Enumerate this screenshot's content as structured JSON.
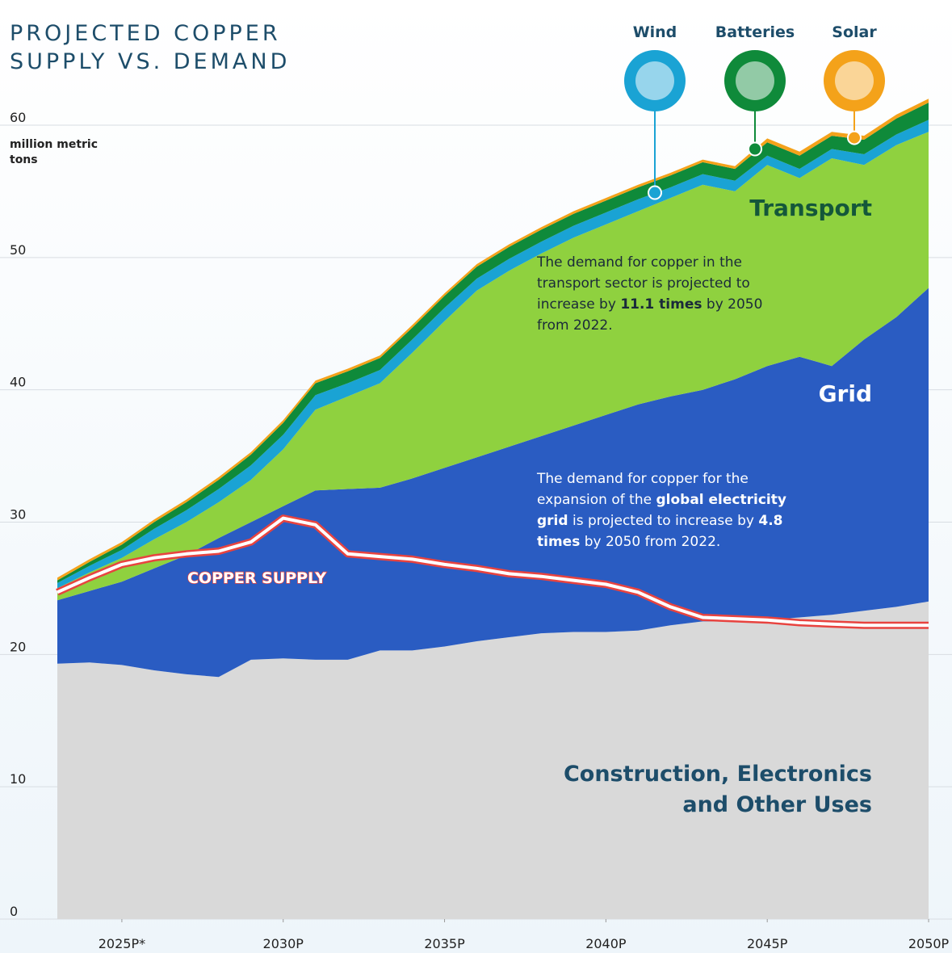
{
  "chart_data": {
    "type": "stacked-area",
    "title": "PROJECTED COPPER SUPPLY VS. DEMAND",
    "y_label": "million metric tons",
    "x": [
      2023,
      2024,
      2025,
      2026,
      2027,
      2028,
      2029,
      2030,
      2031,
      2032,
      2033,
      2034,
      2035,
      2036,
      2037,
      2038,
      2039,
      2040,
      2041,
      2042,
      2043,
      2044,
      2045,
      2046,
      2047,
      2048,
      2049,
      2050
    ],
    "xlim": [
      2022.6,
      2050.45
    ],
    "xticks": [
      {
        "value": 2025,
        "label": "2025P*"
      },
      {
        "value": 2030,
        "label": "2030P"
      },
      {
        "value": 2035,
        "label": "2035P"
      },
      {
        "value": 2040,
        "label": "2040P"
      },
      {
        "value": 2045,
        "label": "2045P"
      },
      {
        "value": 2050,
        "label": "2050P"
      }
    ],
    "ylim": [
      0,
      60
    ],
    "yticks": [
      0,
      10,
      20,
      30,
      40,
      50,
      60
    ],
    "grid": true,
    "series": [
      {
        "name": "Construction, Electronics and Other Uses",
        "color": "#d9d9d9",
        "values": [
          19.3,
          19.4,
          19.2,
          18.8,
          18.5,
          18.3,
          19.6,
          19.7,
          19.6,
          19.6,
          20.3,
          20.3,
          20.6,
          21.0,
          21.3,
          21.6,
          21.7,
          21.7,
          21.8,
          22.2,
          22.5,
          22.5,
          22.6,
          22.8,
          23.0,
          23.3,
          23.6,
          24.0
        ]
      },
      {
        "name": "Grid",
        "color": "#2a5cc2",
        "values": [
          4.8,
          5.4,
          6.3,
          7.7,
          9.0,
          10.5,
          10.4,
          11.5,
          12.8,
          12.9,
          12.3,
          13.0,
          13.5,
          13.9,
          14.4,
          14.9,
          15.6,
          16.4,
          17.1,
          17.3,
          17.5,
          18.3,
          19.2,
          19.7,
          18.8,
          20.5,
          21.9,
          23.7
        ]
      },
      {
        "name": "Transport",
        "color": "#8fd13f",
        "values": [
          0.9,
          1.4,
          1.8,
          2.2,
          2.5,
          2.7,
          3.2,
          4.3,
          6.1,
          7.0,
          7.9,
          9.5,
          11.1,
          12.6,
          13.3,
          13.8,
          14.2,
          14.4,
          14.6,
          15.0,
          15.5,
          14.2,
          15.2,
          13.5,
          15.7,
          13.2,
          13.0,
          11.8
        ]
      },
      {
        "name": "Wind",
        "color": "#1aa3d4",
        "values": [
          0.4,
          0.5,
          0.6,
          0.8,
          0.9,
          1.0,
          1.1,
          1.1,
          1.1,
          1.0,
          1.0,
          1.0,
          1.0,
          0.9,
          0.9,
          0.9,
          0.9,
          0.9,
          0.9,
          0.8,
          0.8,
          0.8,
          0.7,
          0.7,
          0.7,
          0.8,
          0.8,
          0.9
        ]
      },
      {
        "name": "Batteries",
        "color": "#0f8a3a",
        "values": [
          0.2,
          0.3,
          0.4,
          0.5,
          0.6,
          0.7,
          0.8,
          0.9,
          0.9,
          0.9,
          0.9,
          0.9,
          0.9,
          0.9,
          0.9,
          0.9,
          0.9,
          0.9,
          0.9,
          0.9,
          0.9,
          0.9,
          1.0,
          1.0,
          1.0,
          1.1,
          1.2,
          1.3
        ]
      },
      {
        "name": "Solar",
        "color": "#f4a21a",
        "values": [
          0.2,
          0.2,
          0.2,
          0.2,
          0.2,
          0.2,
          0.2,
          0.2,
          0.2,
          0.2,
          0.2,
          0.2,
          0.2,
          0.2,
          0.2,
          0.2,
          0.2,
          0.2,
          0.2,
          0.2,
          0.2,
          0.2,
          0.3,
          0.3,
          0.3,
          0.3,
          0.3,
          0.3
        ]
      }
    ],
    "supply": {
      "name": "COPPER SUPPLY",
      "color": "#e8433f",
      "values": [
        24.7,
        25.8,
        26.8,
        27.3,
        27.6,
        27.8,
        28.5,
        30.3,
        29.8,
        27.6,
        27.4,
        27.2,
        26.8,
        26.5,
        26.1,
        25.9,
        25.6,
        25.3,
        24.7,
        23.6,
        22.8,
        22.7,
        22.6,
        22.4,
        22.3,
        22.2,
        22.2,
        22.2
      ]
    },
    "annotations": [
      [
        "The demand for copper in the transport sector is projected to increase by ",
        "11.1 times",
        " by 2050 from 2022."
      ],
      [
        "The demand for copper for the expansion of the ",
        "global electricity grid",
        " is projected to increase by ",
        "4.8 times",
        " by 2050 from 2022."
      ]
    ]
  }
}
